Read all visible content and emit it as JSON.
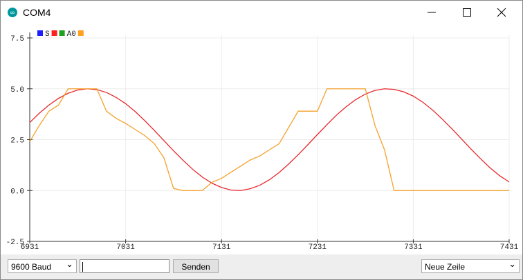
{
  "window": {
    "title": "COM4"
  },
  "chart_data": {
    "type": "line",
    "legend": [
      {
        "label": "S",
        "color": "#1c1cff"
      },
      {
        "color": "#ff2020"
      },
      {
        "label": "A0",
        "color": "#20a020"
      },
      {
        "color": "#ffa020"
      }
    ],
    "x": [
      6931,
      6941,
      6951,
      6961,
      6971,
      6981,
      6991,
      7001,
      7011,
      7021,
      7031,
      7041,
      7051,
      7061,
      7071,
      7081,
      7091,
      7101,
      7111,
      7121,
      7131,
      7141,
      7151,
      7161,
      7171,
      7181,
      7191,
      7201,
      7211,
      7221,
      7231,
      7241,
      7251,
      7261,
      7271,
      7281,
      7291,
      7301,
      7311,
      7321,
      7331,
      7341,
      7351,
      7361,
      7371,
      7381,
      7391,
      7401,
      7411,
      7421,
      7431
    ],
    "series": [
      {
        "color": "#e8262b",
        "values": [
          3.34,
          3.8,
          4.2,
          4.53,
          4.78,
          4.94,
          5.0,
          4.96,
          4.82,
          4.58,
          4.27,
          3.88,
          3.43,
          2.95,
          2.45,
          1.95,
          1.48,
          1.04,
          0.66,
          0.36,
          0.15,
          0.02,
          0.0,
          0.09,
          0.26,
          0.53,
          0.88,
          1.3,
          1.76,
          2.25,
          2.75,
          3.24,
          3.71,
          4.12,
          4.47,
          4.74,
          4.92,
          5.0,
          4.97,
          4.85,
          4.64,
          4.34,
          3.96,
          3.52,
          3.05,
          2.55,
          2.05,
          1.57,
          1.12,
          0.73,
          0.42
        ]
      },
      {
        "color": "#f5a02a",
        "values": [
          2.4,
          3.2,
          3.9,
          4.2,
          5.0,
          5.0,
          5.0,
          5.0,
          3.9,
          3.55,
          3.3,
          3.0,
          2.7,
          2.3,
          1.6,
          0.1,
          0.0,
          0.0,
          0.0,
          0.4,
          0.6,
          0.9,
          1.2,
          1.5,
          1.7,
          2.0,
          2.3,
          3.1,
          3.9,
          3.9,
          3.9,
          5.0,
          5.0,
          5.0,
          5.0,
          5.0,
          3.2,
          2.0,
          0.0,
          0.0,
          0.0,
          0.0,
          0.0,
          0.0,
          0.0,
          0.0,
          0.0,
          0.0,
          0.0,
          0.0,
          0.0
        ]
      }
    ],
    "xlim": [
      6931,
      7431
    ],
    "xticks": [
      6931,
      7031,
      7131,
      7231,
      7331,
      7431
    ],
    "ylim": [
      -2.5,
      7.5
    ],
    "yticks": [
      -2.5,
      {
        "value": 0,
        "label": "0.0"
      },
      2.5,
      {
        "value": 5,
        "label": "5.0"
      },
      7.5
    ],
    "grid": true
  },
  "controls": {
    "baud": "9600 Baud",
    "send": "Senden",
    "line_ending": "Neue Zeile"
  }
}
